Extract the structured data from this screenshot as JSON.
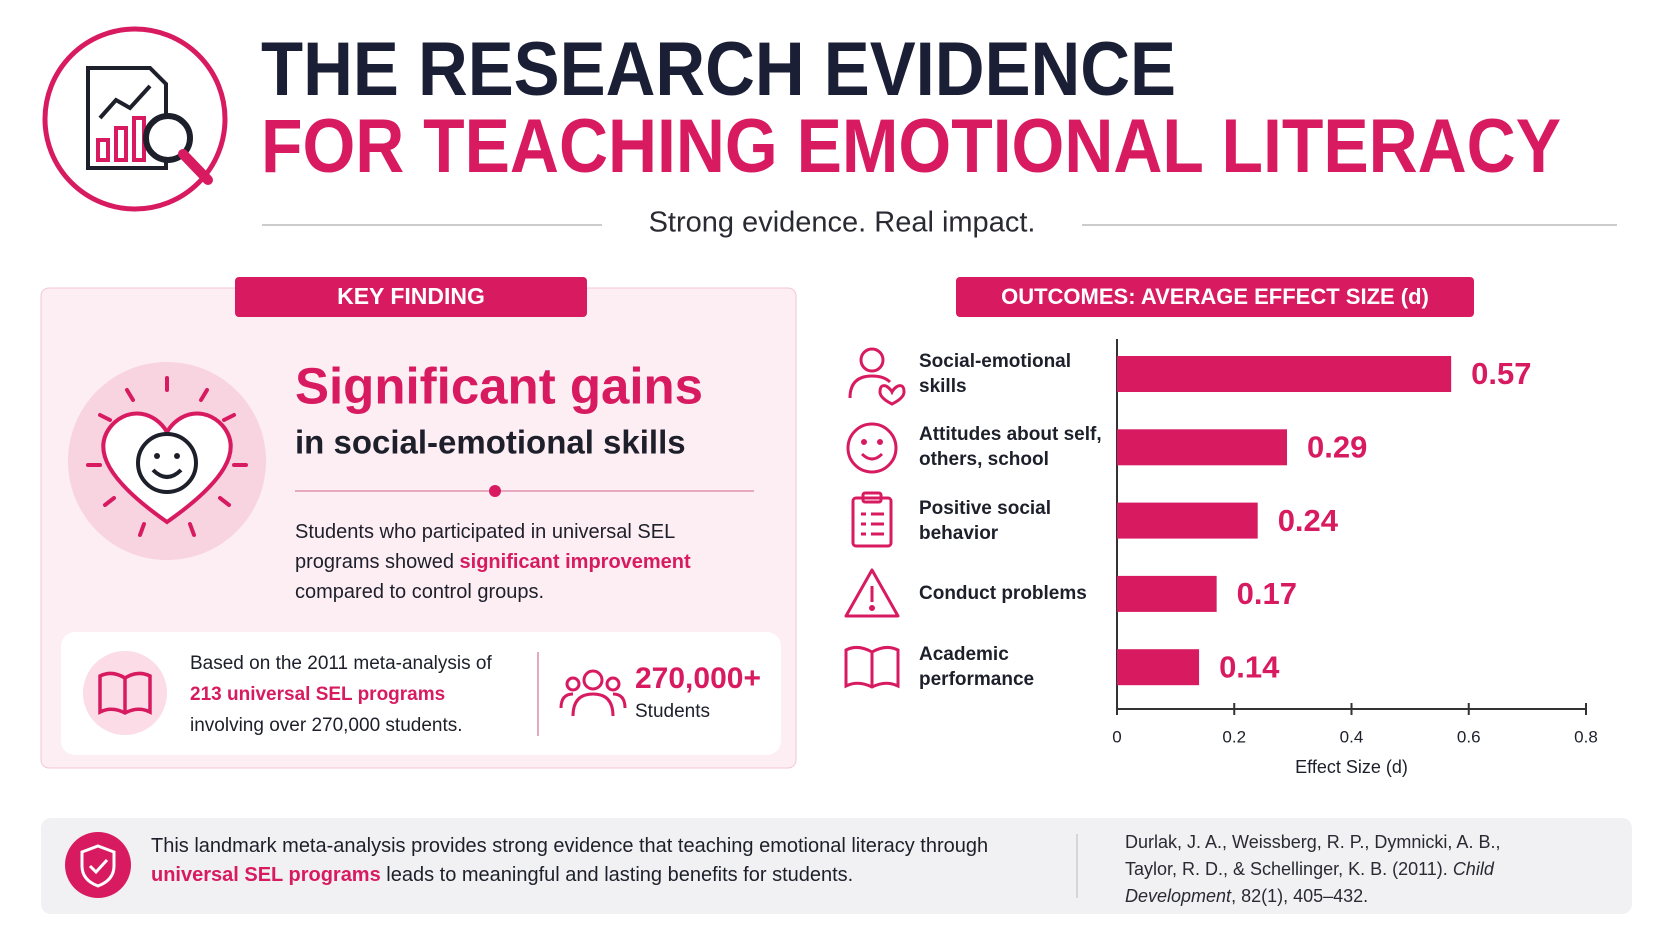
{
  "header": {
    "title_line1": "THE RESEARCH EVIDENCE",
    "title_line2": "FOR TEACHING EMOTIONAL LITERACY",
    "subtitle": "Strong evidence. Real impact."
  },
  "key_finding": {
    "tab": "KEY FINDING",
    "heading": "Significant gains",
    "subheading": "in social-emotional skills",
    "body": [
      "Students who participated in universal SEL programs showed ",
      "significant improvement",
      " compared to control groups."
    ],
    "source": [
      "Based on the 2011 meta-analysis of ",
      "213 universal SEL programs",
      " involving over 270,000 students."
    ],
    "stat_value": "270,000+",
    "stat_label": "Students"
  },
  "chart_data": {
    "type": "bar",
    "orientation": "horizontal",
    "title": "OUTCOMES: AVERAGE EFFECT SIZE (d)",
    "categories": [
      "Social-emotional skills",
      "Attitudes about self, others, school",
      "Positive social behavior",
      "Conduct problems",
      "Academic performance"
    ],
    "values": [
      0.57,
      0.29,
      0.24,
      0.17,
      0.14
    ],
    "color": "#d81b60",
    "xlabel": "Effect Size (d)",
    "xlim": [
      0,
      0.8
    ],
    "xticks": [
      0,
      0.2,
      0.4,
      0.6,
      0.8
    ]
  },
  "footer": {
    "summary": [
      "This landmark meta-analysis provides strong evidence that teaching emotional literacy through ",
      "universal SEL programs",
      " leads to meaningful and lasting benefits for students."
    ],
    "citation": [
      "Durlak, J. A., Weissberg, R. P., Dymnicki, A. B., Taylor, R. D., & Schellinger, K. B. (2011). ",
      "Child Development",
      ", 82(1), 405–432."
    ]
  }
}
